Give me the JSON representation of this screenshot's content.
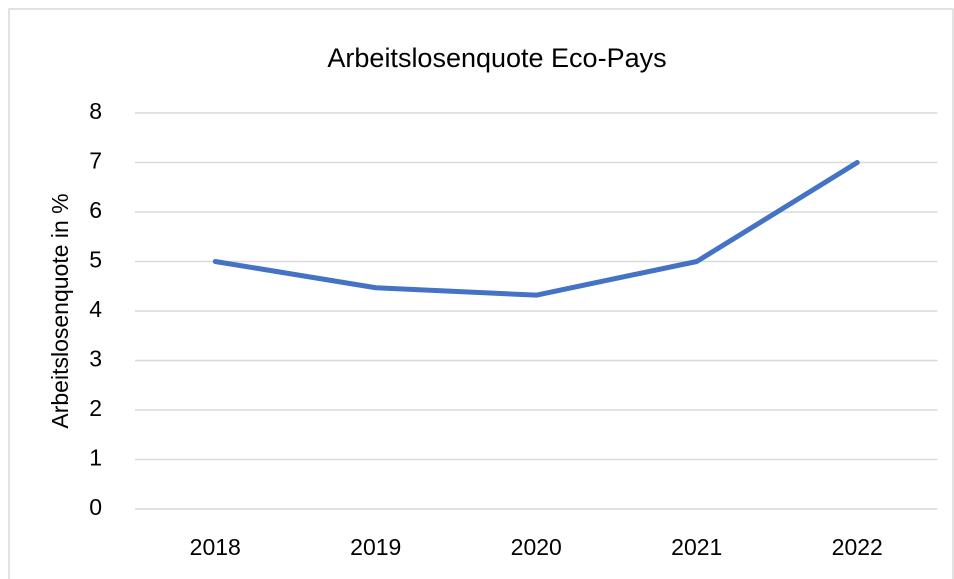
{
  "chart_data": {
    "type": "line",
    "title": "Arbeitslosenquote Eco-Pays",
    "y_label": "Arbeitslosenquote in %",
    "categories": [
      "2018",
      "2019",
      "2020",
      "2021",
      "2022"
    ],
    "values": [
      5,
      4.47,
      4.32,
      5,
      7
    ],
    "color": "#4472c4",
    "ylim": [
      0,
      8
    ],
    "yticks": [
      0,
      1,
      2,
      3,
      4,
      5,
      6,
      7,
      8
    ],
    "grid": true
  }
}
